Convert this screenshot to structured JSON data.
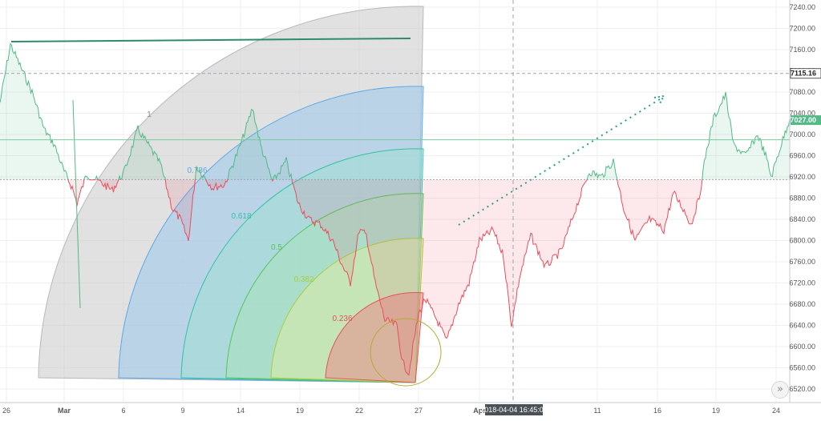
{
  "chart_data": {
    "type": "line",
    "instrument_series": "price",
    "x_tick_labels": [
      "26",
      "Mar",
      "6",
      "9",
      "14",
      "19",
      "22",
      "27",
      "Apr",
      "11",
      "16",
      "19",
      "24"
    ],
    "y_tick_labels": [
      "7240.00",
      "7200.00",
      "7160.00",
      "7120.00",
      "7080.00",
      "7040.00",
      "7000.00",
      "6960.00",
      "6920.00",
      "6880.00",
      "6840.00",
      "6800.00",
      "6760.00",
      "6720.00",
      "6680.00",
      "6640.00",
      "6600.00",
      "6560.00",
      "6520.00"
    ],
    "ylim": [
      6505,
      7255
    ],
    "baseline_price": 6915,
    "reference_levels": {
      "dashed_price": "7115.16",
      "last_price": "7027.00",
      "green_horizontal_price": 6990
    },
    "crosshair_time_label": "2018-04-04 16:45:00",
    "fib_fan_levels": [
      {
        "level": "1",
        "color": "#b8b8b8"
      },
      {
        "level": "0.786",
        "color": "#5aa9e6"
      },
      {
        "level": "0.618",
        "color": "#2ec4a3"
      },
      {
        "level": "0.5",
        "color": "#58c45a"
      },
      {
        "level": "0.382",
        "color": "#a8cf3a"
      },
      {
        "level": "0.236",
        "color": "#e3525a"
      }
    ],
    "price_keypoints": [
      {
        "x": 0,
        "y": 7060
      },
      {
        "x": 13,
        "y": 7170
      },
      {
        "x": 25,
        "y": 7130
      },
      {
        "x": 40,
        "y": 7080
      },
      {
        "x": 55,
        "y": 7010
      },
      {
        "x": 68,
        "y": 6980
      },
      {
        "x": 80,
        "y": 6930
      },
      {
        "x": 90,
        "y": 6900
      },
      {
        "x": 96,
        "y": 6870
      },
      {
        "x": 108,
        "y": 6925
      },
      {
        "x": 125,
        "y": 6910
      },
      {
        "x": 140,
        "y": 6895
      },
      {
        "x": 155,
        "y": 6930
      },
      {
        "x": 172,
        "y": 7010
      },
      {
        "x": 185,
        "y": 6980
      },
      {
        "x": 200,
        "y": 6945
      },
      {
        "x": 215,
        "y": 6860
      },
      {
        "x": 225,
        "y": 6840
      },
      {
        "x": 235,
        "y": 6800
      },
      {
        "x": 245,
        "y": 6940
      },
      {
        "x": 265,
        "y": 6900
      },
      {
        "x": 280,
        "y": 6905
      },
      {
        "x": 300,
        "y": 6980
      },
      {
        "x": 315,
        "y": 7050
      },
      {
        "x": 325,
        "y": 6980
      },
      {
        "x": 340,
        "y": 6910
      },
      {
        "x": 357,
        "y": 6950
      },
      {
        "x": 372,
        "y": 6870
      },
      {
        "x": 385,
        "y": 6840
      },
      {
        "x": 400,
        "y": 6830
      },
      {
        "x": 415,
        "y": 6800
      },
      {
        "x": 425,
        "y": 6760
      },
      {
        "x": 437,
        "y": 6720
      },
      {
        "x": 448,
        "y": 6820
      },
      {
        "x": 457,
        "y": 6810
      },
      {
        "x": 468,
        "y": 6720
      },
      {
        "x": 480,
        "y": 6650
      },
      {
        "x": 495,
        "y": 6640
      },
      {
        "x": 502,
        "y": 6570
      },
      {
        "x": 510,
        "y": 6550
      },
      {
        "x": 515,
        "y": 6600
      },
      {
        "x": 522,
        "y": 6660
      },
      {
        "x": 530,
        "y": 6690
      },
      {
        "x": 545,
        "y": 6650
      },
      {
        "x": 557,
        "y": 6610
      },
      {
        "x": 572,
        "y": 6680
      },
      {
        "x": 585,
        "y": 6720
      },
      {
        "x": 598,
        "y": 6800
      },
      {
        "x": 615,
        "y": 6820
      },
      {
        "x": 628,
        "y": 6770
      },
      {
        "x": 638,
        "y": 6640
      },
      {
        "x": 648,
        "y": 6730
      },
      {
        "x": 662,
        "y": 6810
      },
      {
        "x": 680,
        "y": 6750
      },
      {
        "x": 700,
        "y": 6780
      },
      {
        "x": 718,
        "y": 6860
      },
      {
        "x": 735,
        "y": 6930
      },
      {
        "x": 750,
        "y": 6920
      },
      {
        "x": 765,
        "y": 6950
      },
      {
        "x": 778,
        "y": 6860
      },
      {
        "x": 792,
        "y": 6800
      },
      {
        "x": 810,
        "y": 6840
      },
      {
        "x": 828,
        "y": 6820
      },
      {
        "x": 840,
        "y": 6890
      },
      {
        "x": 852,
        "y": 6860
      },
      {
        "x": 862,
        "y": 6830
      },
      {
        "x": 872,
        "y": 6880
      },
      {
        "x": 880,
        "y": 6960
      },
      {
        "x": 890,
        "y": 7030
      },
      {
        "x": 905,
        "y": 7075
      },
      {
        "x": 915,
        "y": 6980
      },
      {
        "x": 930,
        "y": 6960
      },
      {
        "x": 945,
        "y": 7000
      },
      {
        "x": 955,
        "y": 6960
      },
      {
        "x": 962,
        "y": 6920
      },
      {
        "x": 972,
        "y": 6970
      },
      {
        "x": 985,
        "y": 7030
      }
    ]
  }
}
